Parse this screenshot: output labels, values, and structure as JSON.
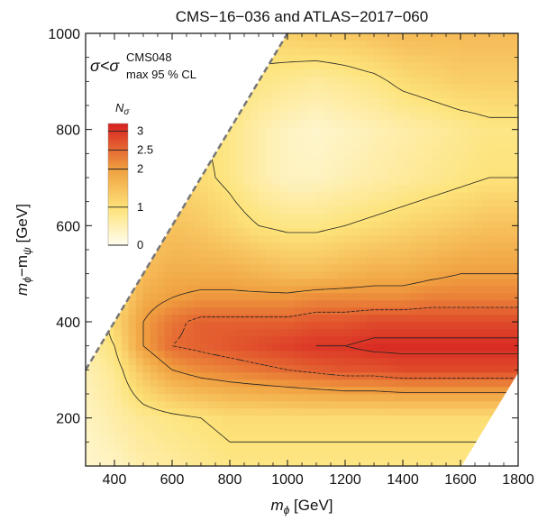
{
  "chart_data": {
    "type": "heatmap",
    "title": "CMS−16−036 and ATLAS−2017−060",
    "xlabel_main": "m",
    "xlabel_sub": "ϕ",
    "xlabel_unit": " [GeV]",
    "ylabel_main": "m",
    "ylabel_sub1": "ϕ",
    "ylabel_mid": "−m",
    "ylabel_sub2": "ψ",
    "ylabel_unit": " [GeV]",
    "xlim": [
      300,
      1800
    ],
    "ylim": [
      100,
      1000
    ],
    "x_ticks": [
      400,
      600,
      800,
      1000,
      1200,
      1400,
      1600,
      1800
    ],
    "y_ticks": [
      200,
      400,
      600,
      800,
      1000
    ],
    "annotation": {
      "sigma": "σ<σ",
      "sup": "CMS048",
      "sub": "max 95 % CL"
    },
    "colorbar": {
      "label_main": "N",
      "label_sub": "σ",
      "ticks": [
        {
          "value": 3,
          "label": "3"
        },
        {
          "value": 2.5,
          "label": "2.5"
        },
        {
          "value": 2,
          "label": "2"
        },
        {
          "value": 1,
          "label": "1"
        },
        {
          "value": 0,
          "label": "0"
        }
      ],
      "range": [
        0,
        3.2
      ]
    },
    "kinematic_boundary": {
      "description_x": [
        300,
        1000
      ],
      "description_y": [
        300,
        1000
      ]
    },
    "z_grid": {
      "x": [
        300,
        400,
        500,
        600,
        700,
        800,
        900,
        1000,
        1100,
        1200,
        1300,
        1400,
        1500,
        1600,
        1700,
        1800
      ],
      "y": [
        100,
        200,
        300,
        350,
        400,
        450,
        500,
        600,
        700,
        800,
        900,
        1000
      ],
      "z": [
        [
          0.3,
          0.4,
          0.6,
          0.7,
          0.8,
          0.9,
          0.9,
          0.9,
          0.9,
          0.9,
          0.9,
          0.9,
          0.9,
          0.9,
          0.9,
          0.9
        ],
        [
          0.4,
          0.6,
          0.8,
          0.9,
          1.0,
          1.1,
          1.1,
          1.1,
          1.1,
          1.1,
          1.1,
          1.1,
          1.1,
          1.1,
          1.1,
          1.1
        ],
        [
          0.5,
          0.8,
          1.5,
          2.0,
          2.2,
          2.3,
          2.4,
          2.5,
          2.6,
          2.7,
          2.7,
          2.8,
          2.8,
          2.8,
          2.8,
          2.8
        ],
        [
          0.6,
          1.0,
          2.0,
          2.5,
          2.6,
          2.7,
          2.8,
          2.9,
          3.0,
          3.0,
          3.1,
          3.1,
          3.1,
          3.1,
          3.1,
          3.1
        ],
        [
          0.5,
          1.2,
          2.0,
          2.4,
          2.6,
          2.6,
          2.6,
          2.6,
          2.7,
          2.7,
          2.8,
          2.8,
          2.8,
          2.8,
          2.8,
          2.8
        ],
        [
          0.5,
          1.0,
          1.8,
          2.0,
          2.1,
          2.1,
          2.1,
          2.1,
          2.2,
          2.2,
          2.2,
          2.2,
          2.3,
          2.3,
          2.3,
          2.3
        ],
        [
          0.5,
          0.9,
          1.6,
          1.8,
          1.8,
          1.8,
          1.7,
          1.6,
          1.6,
          1.7,
          1.8,
          1.8,
          1.9,
          2.0,
          2.0,
          2.0
        ],
        [
          0.5,
          0.8,
          1.3,
          1.5,
          1.4,
          1.2,
          1.0,
          0.9,
          0.9,
          1.0,
          1.1,
          1.2,
          1.3,
          1.4,
          1.5,
          1.5
        ],
        [
          0.5,
          0.7,
          1.0,
          1.2,
          1.1,
          0.9,
          0.6,
          0.4,
          0.4,
          0.5,
          0.6,
          0.7,
          0.8,
          0.9,
          1.0,
          1.0
        ],
        [
          0.5,
          0.6,
          0.8,
          1.0,
          1.0,
          0.9,
          0.6,
          0.4,
          0.3,
          0.4,
          0.5,
          0.6,
          0.7,
          0.8,
          0.9,
          0.9
        ],
        [
          0.5,
          0.6,
          0.8,
          0.9,
          1.0,
          1.0,
          0.9,
          0.8,
          0.7,
          0.8,
          0.9,
          1.1,
          1.2,
          1.3,
          1.3,
          1.3
        ],
        [
          0.5,
          0.6,
          0.8,
          0.9,
          1.0,
          1.1,
          1.2,
          1.3,
          1.4,
          1.4,
          1.5,
          1.6,
          1.6,
          1.6,
          1.6,
          1.6
        ]
      ]
    },
    "colors": {
      "low": "#fffdf0",
      "mid": "#fde37a",
      "high": "#f0a040",
      "top": "#d72020",
      "contour": "#222222",
      "boundary": "#777777"
    }
  }
}
